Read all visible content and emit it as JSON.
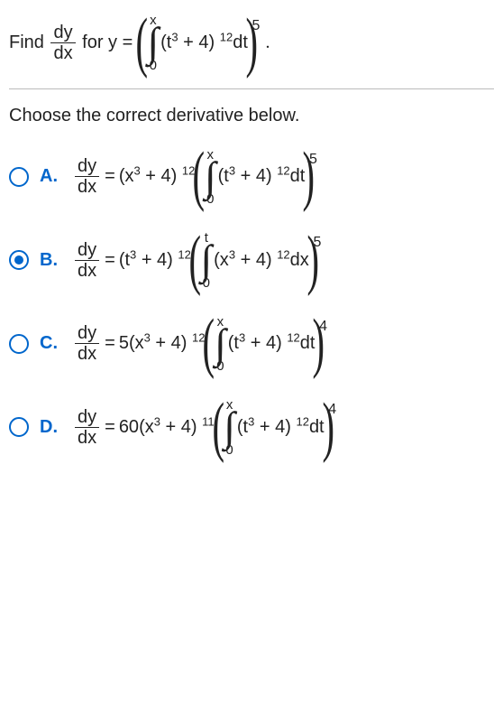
{
  "question": {
    "prefix": "Find",
    "frac_top": "dy",
    "frac_bot": "dx",
    "mid": "for y =",
    "int_upper": "x",
    "int_lower": "0",
    "integrand_base": "t",
    "integrand_inner_exp": "3",
    "integrand_add": "+ 4",
    "integrand_outer_exp": "12",
    "dvar": "dt",
    "outer_exp": "5",
    "trail": "."
  },
  "prompt": "Choose the correct derivative below.",
  "options": [
    {
      "label": "A.",
      "selected": false,
      "lhs_top": "dy",
      "lhs_bot": "dx",
      "coef": "",
      "outer_base": "x",
      "outer_inner_exp": "3",
      "outer_add": "+ 4",
      "outer_exp": "12",
      "int_upper": "x",
      "int_lower": "0",
      "int_base": "t",
      "int_inner_exp": "3",
      "int_add": "+ 4",
      "int_exp": "12",
      "dvar": "dt",
      "final_exp": "5"
    },
    {
      "label": "B.",
      "selected": true,
      "lhs_top": "dy",
      "lhs_bot": "dx",
      "coef": "",
      "outer_base": "t",
      "outer_inner_exp": "3",
      "outer_add": "+ 4",
      "outer_exp": "12",
      "int_upper": "t",
      "int_lower": "0",
      "int_base": "x",
      "int_inner_exp": "3",
      "int_add": "+ 4",
      "int_exp": "12",
      "dvar": "dx",
      "final_exp": "5"
    },
    {
      "label": "C.",
      "selected": false,
      "lhs_top": "dy",
      "lhs_bot": "dx",
      "coef": "5",
      "outer_base": "x",
      "outer_inner_exp": "3",
      "outer_add": "+ 4",
      "outer_exp": "12",
      "int_upper": "x",
      "int_lower": "0",
      "int_base": "t",
      "int_inner_exp": "3",
      "int_add": "+ 4",
      "int_exp": "12",
      "dvar": "dt",
      "final_exp": "4"
    },
    {
      "label": "D.",
      "selected": false,
      "lhs_top": "dy",
      "lhs_bot": "dx",
      "coef": "60",
      "outer_base": "x",
      "outer_inner_exp": "3",
      "outer_add": "+ 4",
      "outer_exp": "11",
      "int_upper": "x",
      "int_lower": "0",
      "int_base": "t",
      "int_inner_exp": "3",
      "int_add": "+ 4",
      "int_exp": "12",
      "dvar": "dt",
      "final_exp": "4"
    }
  ],
  "colors": {
    "accent": "#0066cc",
    "text": "#222222",
    "rule": "#bbbbbb"
  }
}
